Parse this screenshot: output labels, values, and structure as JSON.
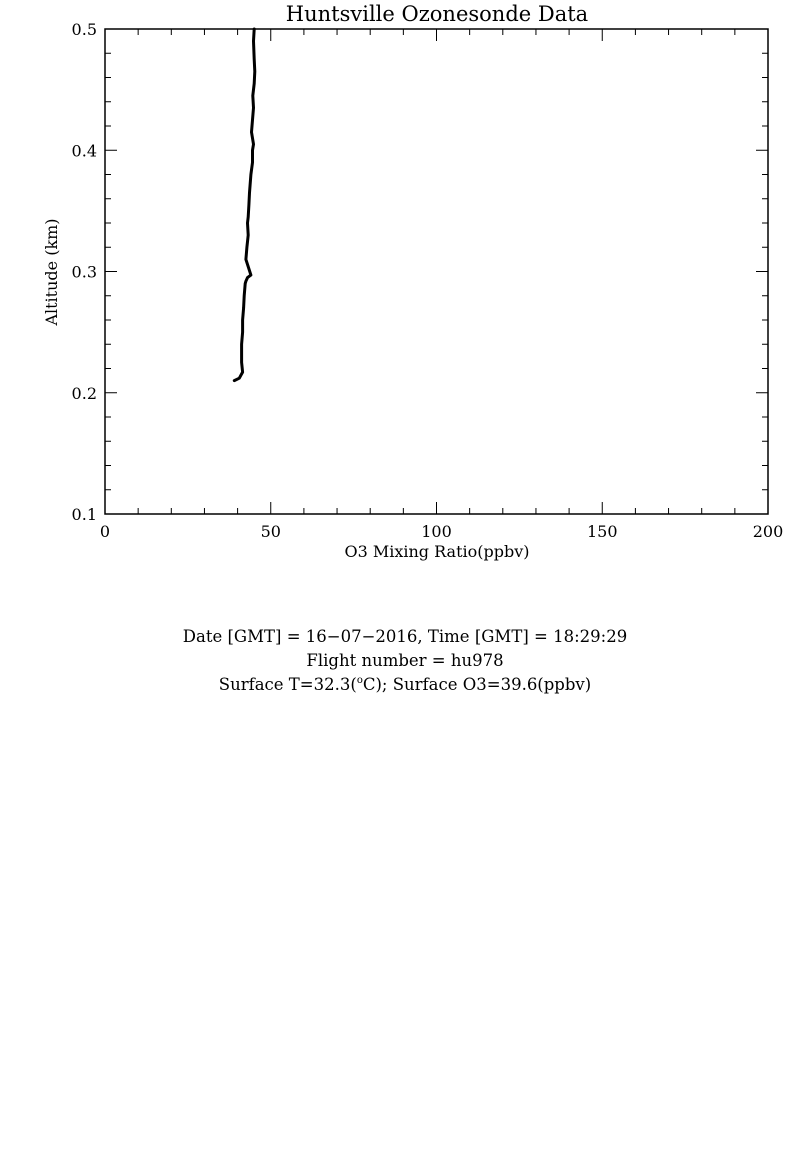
{
  "chart_data": {
    "type": "line",
    "title": "Huntsville Ozonesonde Data",
    "xlabel": "O3 Mixing Ratio(ppbv)",
    "ylabel": "Altitude (km)",
    "xlim": [
      0,
      200
    ],
    "ylim": [
      0.1,
      0.5
    ],
    "x_ticks": [
      "0",
      "50",
      "100",
      "150",
      "200"
    ],
    "y_ticks": [
      "0.1",
      "0.2",
      "0.3",
      "0.4",
      "0.5"
    ],
    "grid": false,
    "line_color": "#000000",
    "series": [
      {
        "x": [
          39.0,
          40.5,
          41.5,
          41.2,
          41.2,
          41.5,
          41.5,
          41.8,
          42.0,
          42.3,
          42.5,
          43.0,
          44.0,
          42.5,
          42.8,
          43.2,
          43.0,
          43.2,
          43.4,
          43.6,
          44.0,
          44.5,
          44.5,
          44.8,
          44.2,
          44.5,
          44.8,
          44.6,
          45.0,
          45.2,
          45.0,
          44.8,
          45.0
        ],
        "y": [
          0.21,
          0.212,
          0.217,
          0.225,
          0.24,
          0.25,
          0.26,
          0.27,
          0.28,
          0.29,
          0.292,
          0.295,
          0.297,
          0.31,
          0.32,
          0.33,
          0.34,
          0.345,
          0.355,
          0.365,
          0.38,
          0.39,
          0.4,
          0.405,
          0.415,
          0.425,
          0.435,
          0.445,
          0.455,
          0.465,
          0.475,
          0.49,
          0.5
        ]
      }
    ]
  },
  "info": {
    "line1": "Date [GMT] = 16−07−2016,  Time [GMT] = 18:29:29",
    "line2": "Flight number = hu978",
    "surface_t_prefix": "Surface T=32.3(",
    "surface_t_sup": "o",
    "surface_t_suffix": "C); Surface O3=39.6(ppbv)"
  }
}
